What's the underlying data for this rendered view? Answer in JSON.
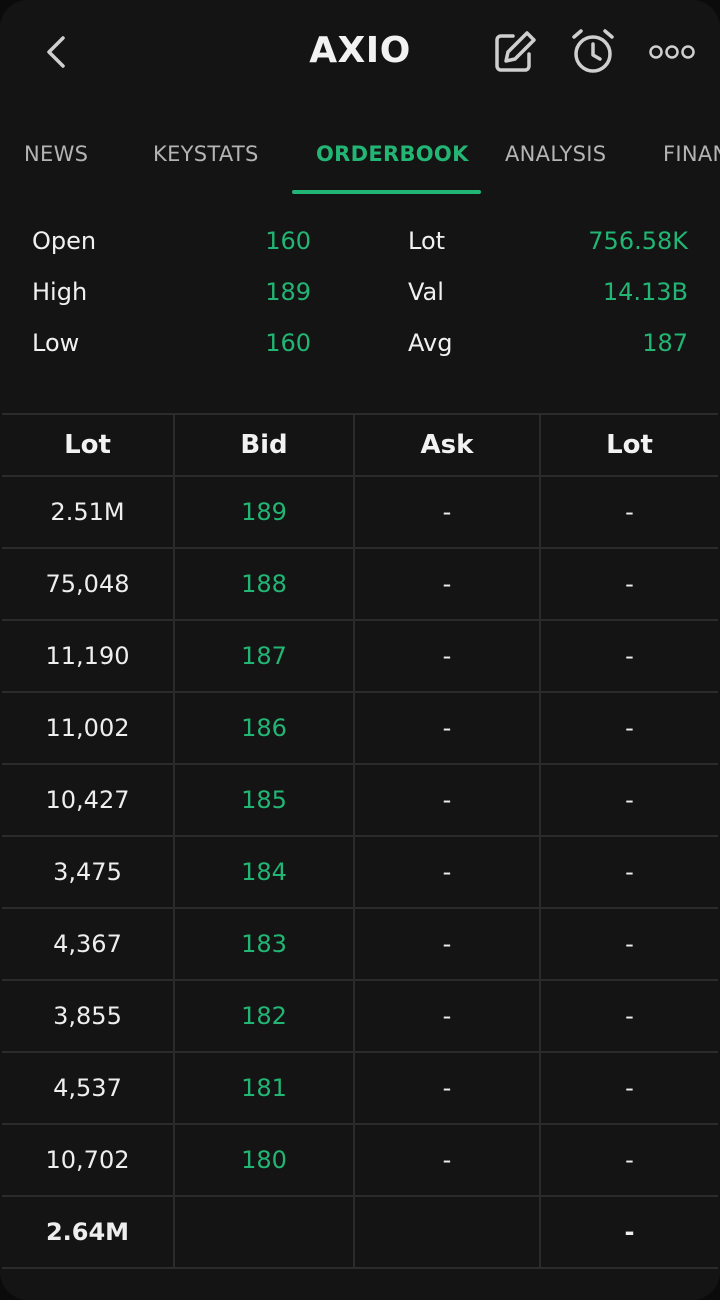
{
  "header": {
    "title": "AXIO"
  },
  "tabs": [
    {
      "label": "NEWS"
    },
    {
      "label": "KEYSTATS"
    },
    {
      "label": "ORDERBOOK"
    },
    {
      "label": "ANALYSIS"
    },
    {
      "label": "FINAN"
    }
  ],
  "stats": {
    "open": {
      "label": "Open",
      "value": "160"
    },
    "high": {
      "label": "High",
      "value": "189"
    },
    "low": {
      "label": "Low",
      "value": "160"
    },
    "lot": {
      "label": "Lot",
      "value": "756.58K"
    },
    "val": {
      "label": "Val",
      "value": "14.13B"
    },
    "avg": {
      "label": "Avg",
      "value": "187"
    }
  },
  "orderbook": {
    "headers": [
      "Lot",
      "Bid",
      "Ask",
      "Lot"
    ],
    "rows": [
      {
        "bid_lot": "2.51M",
        "bid": "189",
        "ask": "-",
        "ask_lot": "-"
      },
      {
        "bid_lot": "75,048",
        "bid": "188",
        "ask": "-",
        "ask_lot": "-"
      },
      {
        "bid_lot": "11,190",
        "bid": "187",
        "ask": "-",
        "ask_lot": "-"
      },
      {
        "bid_lot": "11,002",
        "bid": "186",
        "ask": "-",
        "ask_lot": "-"
      },
      {
        "bid_lot": "10,427",
        "bid": "185",
        "ask": "-",
        "ask_lot": "-"
      },
      {
        "bid_lot": "3,475",
        "bid": "184",
        "ask": "-",
        "ask_lot": "-"
      },
      {
        "bid_lot": "4,367",
        "bid": "183",
        "ask": "-",
        "ask_lot": "-"
      },
      {
        "bid_lot": "3,855",
        "bid": "182",
        "ask": "-",
        "ask_lot": "-"
      },
      {
        "bid_lot": "4,537",
        "bid": "181",
        "ask": "-",
        "ask_lot": "-"
      },
      {
        "bid_lot": "10,702",
        "bid": "180",
        "ask": "-",
        "ask_lot": "-"
      }
    ],
    "total": {
      "bid_lot": "2.64M",
      "bid": "",
      "ask": "",
      "ask_lot": "-"
    }
  },
  "colors": {
    "accent": "#22b573",
    "background": "#141414",
    "grid": "#2b2b2b"
  },
  "icons": {
    "back": "chevron-left-icon",
    "edit": "edit-icon",
    "alarm": "alarm-clock-icon",
    "more": "more-horizontal-icon"
  }
}
